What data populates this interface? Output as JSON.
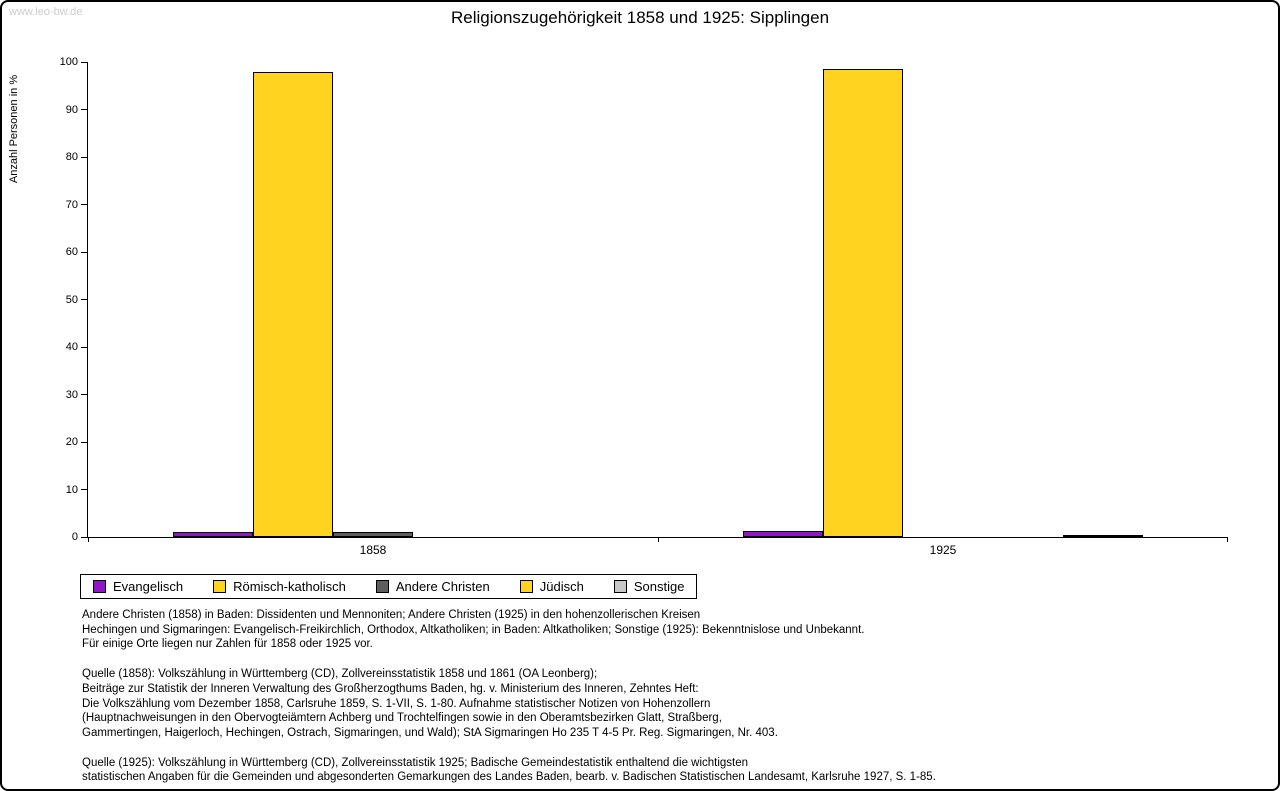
{
  "watermark": "www.leo-bw.de",
  "chart_data": {
    "type": "bar",
    "title": "Religionszugehörigkeit 1858 und 1925: Sipplingen",
    "xlabel": "",
    "ylabel": "Anzahl Personen in %",
    "ylim": [
      0,
      100
    ],
    "ytick_step": 10,
    "grid": false,
    "legend_position": "bottom-left",
    "axis_color": "#000000",
    "categories": [
      "1858",
      "1925"
    ],
    "series": [
      {
        "name": "Evangelisch",
        "color": "#9016c8",
        "values": [
          1.0,
          1.2
        ]
      },
      {
        "name": "Römisch-katholisch",
        "color": "#ffd320",
        "values": [
          98.0,
          98.5
        ]
      },
      {
        "name": "Andere Christen",
        "color": "#5e5e5e",
        "values": [
          1.0,
          0
        ]
      },
      {
        "name": "Jüdisch",
        "color": "#ffd320",
        "values": [
          0,
          0
        ]
      },
      {
        "name": "Sonstige",
        "color": "#c8c8c8",
        "values": [
          0,
          0.4
        ]
      }
    ]
  },
  "note_blocks": [
    [
      "Andere Christen (1858) in Baden: Dissidenten und Mennoniten; Andere Christen (1925) in den hohenzollerischen Kreisen",
      "Hechingen und Sigmaringen: Evangelisch-Freikirchlich, Orthodox, Altkatholiken; in Baden: Altkatholiken; Sonstige (1925): Bekenntnislose und Unbekannt.",
      "Für einige Orte liegen nur Zahlen für 1858 oder 1925 vor."
    ],
    [
      "Quelle (1858): Volkszählung in Württemberg (CD), Zollvereinsstatistik 1858 und 1861 (OA Leonberg);",
      "Beiträge zur Statistik der Inneren Verwaltung des Großherzogthums Baden, hg. v. Ministerium des Inneren, Zehntes Heft:",
      "Die Volkszählung vom Dezember 1858, Carlsruhe 1859, S. 1-VII, S. 1-80. Aufnahme statistischer Notizen von Hohenzollern",
      "(Hauptnachweisungen in den Obervogteiämtern Achberg und Trochtelfingen sowie in den Oberamtsbezirken Glatt, Straßberg,",
      "Gammertingen, Haigerloch, Hechingen, Ostrach, Sigmaringen, und Wald); StA Sigmaringen Ho 235 T 4-5 Pr. Reg. Sigmaringen, Nr. 403."
    ],
    [
      "Quelle (1925): Volkszählung in Württemberg (CD), Zollvereinsstatistik 1925; Badische Gemeindestatistik enthaltend die wichtigsten",
      "statistischen Angaben für die Gemeinden und abgesonderten Gemarkungen des Landes Baden, bearb. v. Badischen Statistischen Landesamt, Karlsruhe 1927, S. 1-85."
    ]
  ]
}
